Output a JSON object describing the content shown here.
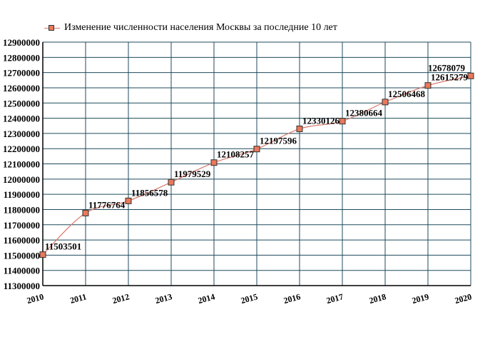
{
  "chart_data": {
    "type": "line",
    "title": "",
    "legend_position": "top-left",
    "grid": true,
    "x": [
      "2010",
      "2011",
      "2012",
      "2013",
      "2014",
      "2015",
      "2016",
      "2017",
      "2018",
      "2019",
      "2020"
    ],
    "y_ticks": [
      11300000,
      11400000,
      11500000,
      11600000,
      11700000,
      11800000,
      11900000,
      12000000,
      12100000,
      12200000,
      12300000,
      12400000,
      12500000,
      12600000,
      12700000,
      12800000,
      12900000
    ],
    "ylim": [
      11300000,
      12900000
    ],
    "xlabel": "",
    "ylabel": "",
    "series": [
      {
        "name": "Изменение численности населения Москвы за последние 10 лет",
        "values": [
          11503501,
          11776764,
          11856578,
          11979529,
          12108257,
          12197596,
          12330126,
          12380664,
          12506468,
          12615279,
          12678079
        ],
        "data_labels": [
          "11503501",
          "11776764",
          "11856578",
          "11979529",
          "12108257",
          "12197596",
          "12330126",
          "12380664",
          "12506468",
          "12615279",
          "12678079"
        ]
      }
    ]
  },
  "colors": {
    "line": "#d9786a",
    "marker_fill": "#e8795a",
    "marker_stroke": "#333333",
    "grid": "#1f4a5c",
    "axis": "#000000"
  }
}
